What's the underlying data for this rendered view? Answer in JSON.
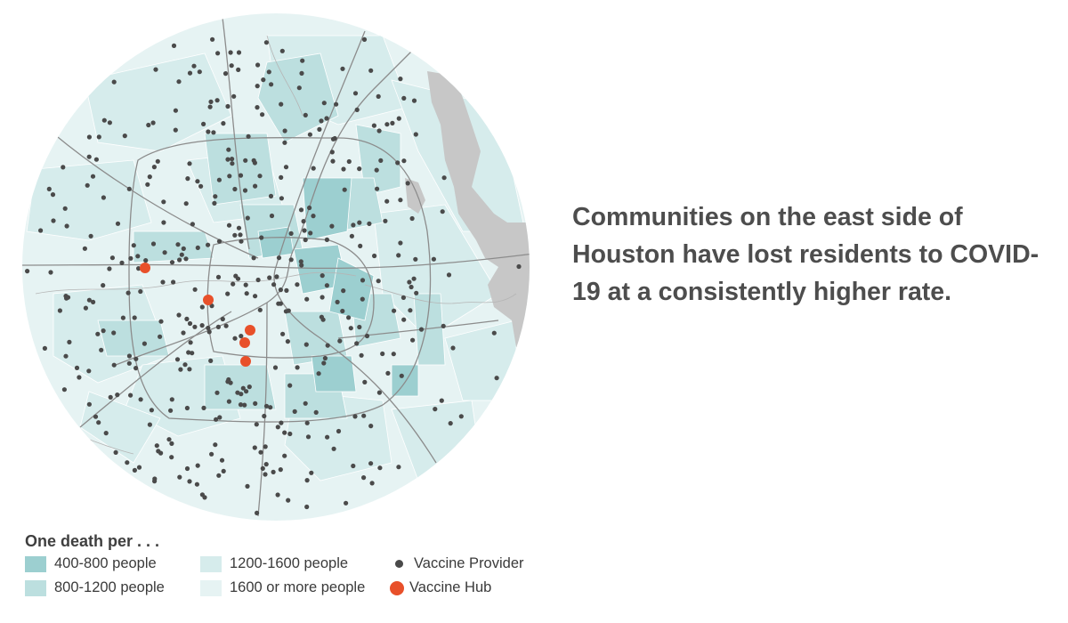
{
  "headline": "Communities on the east side of Houston have lost residents to COVID-19 at a consistently higher rate.",
  "legend": {
    "title": "One death per . . .",
    "items": [
      {
        "label": "400-800 people",
        "color": "#9ccfd0",
        "kind": "swatch"
      },
      {
        "label": "800-1200 people",
        "color": "#bcdfdf",
        "kind": "swatch"
      },
      {
        "label": "1200-1600 people",
        "color": "#d6ecec",
        "kind": "swatch"
      },
      {
        "label": "1600 or more people",
        "color": "#e6f3f3",
        "kind": "swatch"
      },
      {
        "label": "Vaccine Provider",
        "color": "#4a4a4a",
        "kind": "provider"
      },
      {
        "label": "Vaccine Hub",
        "color": "#e8502a",
        "kind": "hub"
      }
    ]
  },
  "colors": {
    "base_area": "#e6f3f3",
    "water": "#c7c7c7",
    "roads": "#8c8c8c"
  }
}
